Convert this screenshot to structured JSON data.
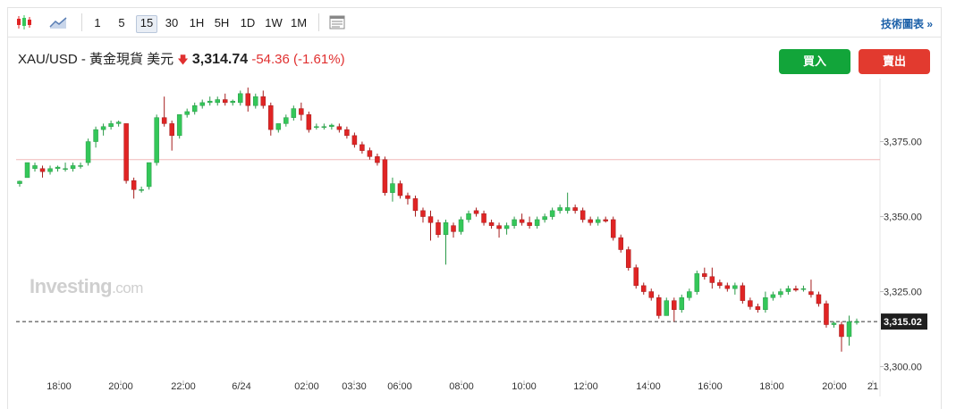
{
  "toolbar": {
    "intervals": [
      "1",
      "5",
      "15",
      "30",
      "1H",
      "5H",
      "1D",
      "1W",
      "1M"
    ],
    "selected": "15",
    "tech_link": "技術圖表 »"
  },
  "header": {
    "symbol": "XAU/USD - 黃金現貨 美元",
    "price": "3,314.74",
    "change": "-54.36",
    "change_pct": "(-1.61%)"
  },
  "buttons": {
    "buy": "買入",
    "sell": "賣出"
  },
  "watermark": {
    "brand": "Investing",
    "suffix": ".com"
  },
  "colors": {
    "up": "#34c759",
    "down": "#e02424",
    "buy": "#12a53a",
    "sell": "#e23a2f",
    "link": "#1a5fa8"
  },
  "chart_data": {
    "type": "candlestick",
    "y_ticks": [
      "3,375.00",
      "3,350.00",
      "3,325.00",
      "3,300.00"
    ],
    "y_tick_values": [
      3375,
      3350,
      3325,
      3300
    ],
    "x_tick_labels": [
      "18:00",
      "20:00",
      "22:00",
      "6/24",
      "02:00",
      "03:30",
      "06:00",
      "08:00",
      "10:00",
      "12:00",
      "14:00",
      "16:00",
      "18:00",
      "20:00",
      "21"
    ],
    "ylim": [
      3296,
      3396
    ],
    "current_price_label": "3,315.02",
    "current_price": 3315.02,
    "reference_line": 3369,
    "candles": [
      [
        3361,
        3362,
        3360,
        3361.8
      ],
      [
        3363,
        3368,
        3363,
        3368
      ],
      [
        3366,
        3368,
        3365,
        3367
      ],
      [
        3366,
        3367,
        3363,
        3365
      ],
      [
        3365,
        3367,
        3364,
        3366
      ],
      [
        3366,
        3367,
        3365,
        3366.5
      ],
      [
        3366,
        3368,
        3365,
        3366
      ],
      [
        3366,
        3368,
        3365,
        3367
      ],
      [
        3367,
        3368,
        3366,
        3367
      ],
      [
        3368,
        3376,
        3367,
        3375
      ],
      [
        3375,
        3380,
        3373,
        3379
      ],
      [
        3379,
        3381,
        3377,
        3380
      ],
      [
        3380,
        3382,
        3379,
        3381
      ],
      [
        3381,
        3382,
        3380,
        3381.5
      ],
      [
        3381,
        3381,
        3361,
        3362
      ],
      [
        3362,
        3363,
        3356,
        3359
      ],
      [
        3359,
        3360,
        3358,
        3359
      ],
      [
        3360,
        3368,
        3359,
        3368
      ],
      [
        3368,
        3384,
        3367,
        3383
      ],
      [
        3383,
        3390,
        3380,
        3381
      ],
      [
        3381,
        3382,
        3372,
        3377
      ],
      [
        3377,
        3384,
        3376,
        3384
      ],
      [
        3384,
        3386,
        3383,
        3385
      ],
      [
        3385,
        3388,
        3384,
        3387
      ],
      [
        3387,
        3389,
        3386,
        3388
      ],
      [
        3388,
        3390,
        3387,
        3388.5
      ],
      [
        3388,
        3390,
        3387,
        3389
      ],
      [
        3389,
        3391,
        3387,
        3388
      ],
      [
        3388,
        3389,
        3387,
        3388.5
      ],
      [
        3388,
        3392,
        3387,
        3391
      ],
      [
        3391,
        3393,
        3385,
        3387
      ],
      [
        3387,
        3391,
        3386,
        3390
      ],
      [
        3390,
        3392,
        3386,
        3387
      ],
      [
        3387,
        3388,
        3377,
        3379
      ],
      [
        3379,
        3381,
        3378,
        3381
      ],
      [
        3381,
        3384,
        3380,
        3383
      ],
      [
        3383,
        3387,
        3382,
        3386
      ],
      [
        3386,
        3388,
        3382,
        3384
      ],
      [
        3384,
        3385,
        3378,
        3379
      ],
      [
        3380,
        3381,
        3379,
        3380
      ],
      [
        3380,
        3381,
        3379,
        3380
      ],
      [
        3380,
        3381,
        3379,
        3380.5
      ],
      [
        3380,
        3381,
        3378,
        3379
      ],
      [
        3379,
        3380,
        3376,
        3377
      ],
      [
        3377,
        3378,
        3373,
        3374
      ],
      [
        3374,
        3375,
        3371,
        3372
      ],
      [
        3372,
        3373,
        3369,
        3370
      ],
      [
        3370,
        3371,
        3367,
        3368
      ],
      [
        3369,
        3370,
        3357,
        3358
      ],
      [
        3358,
        3363,
        3355,
        3361
      ],
      [
        3361,
        3362,
        3356,
        3357
      ],
      [
        3357,
        3358,
        3354,
        3356
      ],
      [
        3356,
        3357,
        3350,
        3352
      ],
      [
        3352,
        3353,
        3348,
        3350
      ],
      [
        3350,
        3352,
        3342,
        3348
      ],
      [
        3348,
        3349,
        3343,
        3344
      ],
      [
        3344,
        3349,
        3334,
        3348
      ],
      [
        3347,
        3348,
        3343,
        3345
      ],
      [
        3345,
        3350,
        3344,
        3349
      ],
      [
        3349,
        3352,
        3348,
        3351
      ],
      [
        3352,
        3353,
        3350,
        3351
      ],
      [
        3351,
        3352,
        3347,
        3348
      ],
      [
        3348,
        3349,
        3346,
        3347
      ],
      [
        3347,
        3348,
        3343,
        3346
      ],
      [
        3346,
        3348,
        3344,
        3347
      ],
      [
        3347,
        3350,
        3346,
        3349
      ],
      [
        3349,
        3351,
        3347,
        3348
      ],
      [
        3348,
        3350,
        3346,
        3347
      ],
      [
        3347,
        3350,
        3346,
        3349
      ],
      [
        3349,
        3351,
        3348,
        3350
      ],
      [
        3350,
        3353,
        3349,
        3352
      ],
      [
        3352,
        3354,
        3351,
        3353
      ],
      [
        3352,
        3358,
        3351,
        3353
      ],
      [
        3353,
        3354,
        3351,
        3352
      ],
      [
        3352,
        3353,
        3348,
        3349
      ],
      [
        3349,
        3350,
        3347,
        3348
      ],
      [
        3348,
        3350,
        3347,
        3349
      ],
      [
        3349,
        3350,
        3348,
        3348.5
      ],
      [
        3349,
        3350,
        3342,
        3343
      ],
      [
        3343,
        3344,
        3338,
        3339
      ],
      [
        3339,
        3340,
        3332,
        3333
      ],
      [
        3333,
        3334,
        3326,
        3327
      ],
      [
        3327,
        3328,
        3324,
        3325
      ],
      [
        3325,
        3326,
        3322,
        3323
      ],
      [
        3323,
        3324,
        3316,
        3317
      ],
      [
        3317,
        3323,
        3317,
        3322
      ],
      [
        3322,
        3323,
        3315,
        3319
      ],
      [
        3319,
        3324,
        3318,
        3323
      ],
      [
        3323,
        3326,
        3322,
        3325
      ],
      [
        3325,
        3332,
        3324,
        3331
      ],
      [
        3331,
        3333,
        3329,
        3330
      ],
      [
        3330,
        3333,
        3326,
        3328
      ],
      [
        3328,
        3329,
        3326,
        3327
      ],
      [
        3327,
        3328,
        3325,
        3326
      ],
      [
        3326,
        3328,
        3324,
        3327
      ],
      [
        3327,
        3328,
        3321,
        3322
      ],
      [
        3322,
        3323,
        3319,
        3320
      ],
      [
        3320,
        3321,
        3318,
        3319
      ],
      [
        3319,
        3325,
        3318,
        3323
      ],
      [
        3323,
        3325,
        3322,
        3324
      ],
      [
        3324,
        3326,
        3323,
        3325
      ],
      [
        3325,
        3327,
        3324,
        3326
      ],
      [
        3326,
        3327,
        3325,
        3325.5
      ],
      [
        3326,
        3327,
        3325,
        3326
      ],
      [
        3325,
        3329,
        3323,
        3324
      ],
      [
        3324,
        3325,
        3320,
        3321
      ],
      [
        3321,
        3322,
        3313,
        3314
      ],
      [
        3314,
        3315,
        3313,
        3314.5
      ],
      [
        3314,
        3315,
        3305,
        3310
      ],
      [
        3310,
        3317,
        3307,
        3315
      ],
      [
        3315,
        3316,
        3314,
        3315.02
      ]
    ]
  }
}
